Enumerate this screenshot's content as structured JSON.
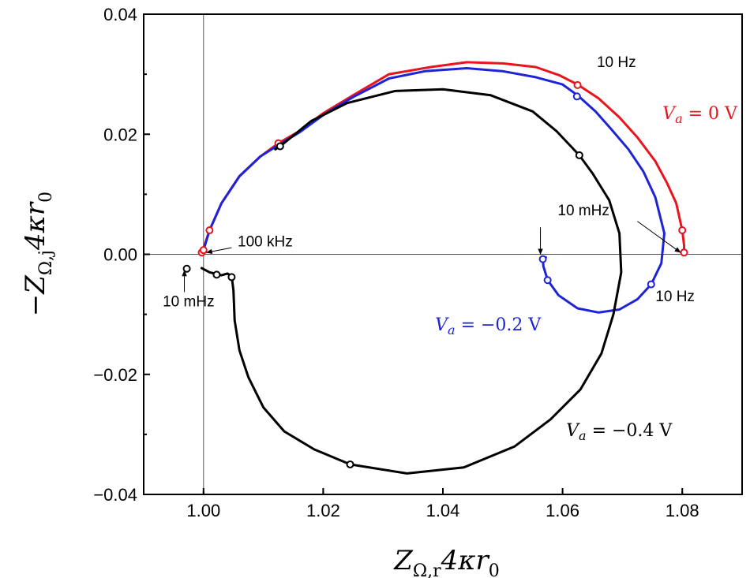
{
  "chart_data": {
    "type": "line",
    "xlim": [
      0.99,
      1.09
    ],
    "ylim": [
      -0.04,
      0.04
    ],
    "x_ticks": [
      "1.00",
      "1.02",
      "1.04",
      "1.06",
      "1.08"
    ],
    "y_ticks": [
      "-0.04",
      "-0.02",
      "0.00",
      "0.02",
      "0.04"
    ],
    "xlabel": "Z_{Ω,r} 4κr_0",
    "ylabel": "−Z_{Ω,j} 4κr_0",
    "xlabel_parts": {
      "main": "Z",
      "sub": "Ω,r",
      "tail": "4κr",
      "tail_sub": "0"
    },
    "ylabel_parts": {
      "pre": "−",
      "main": "Z",
      "sub": "Ω,j",
      "tail": "4κr",
      "tail_sub": "0"
    },
    "reference_lines": {
      "x": 1.0,
      "y": 0.0
    },
    "series": [
      {
        "name": "V_a = 0 V",
        "label": "Va = 0 V",
        "label_parts": {
          "v": "V",
          "sub": "a",
          "rest": " = 0 V"
        },
        "color": "#e8141e",
        "points": [
          [
            0.9997,
            0.0003
          ],
          [
            1.0,
            0.001
          ],
          [
            1.001,
            0.004
          ],
          [
            1.003,
            0.0085
          ],
          [
            1.006,
            0.013
          ],
          [
            1.0095,
            0.0163
          ],
          [
            1.0125,
            0.0185
          ],
          [
            1.016,
            0.0205
          ],
          [
            1.02,
            0.0235
          ],
          [
            1.025,
            0.0265
          ],
          [
            1.031,
            0.03
          ],
          [
            1.038,
            0.0312
          ],
          [
            1.044,
            0.032
          ],
          [
            1.05,
            0.0318
          ],
          [
            1.0555,
            0.0312
          ],
          [
            1.0595,
            0.0298
          ],
          [
            1.0625,
            0.0283
          ],
          [
            1.066,
            0.026
          ],
          [
            1.0695,
            0.0228
          ],
          [
            1.0725,
            0.0195
          ],
          [
            1.0755,
            0.0155
          ],
          [
            1.0775,
            0.0118
          ],
          [
            1.079,
            0.0085
          ],
          [
            1.08,
            0.004
          ],
          [
            1.0803,
            0.0015
          ],
          [
            1.0803,
            0.0003
          ]
        ],
        "markers": [
          [
            0.9997,
            0.0003
          ],
          [
            1.0,
            0.0007
          ],
          [
            1.001,
            0.004
          ],
          [
            1.0125,
            0.0185
          ],
          [
            1.0625,
            0.0282
          ],
          [
            1.08,
            0.004
          ],
          [
            1.0803,
            0.0003
          ]
        ]
      },
      {
        "name": "V_a = -0.2 V",
        "label": "Va = −0.2 V",
        "label_parts": {
          "v": "V",
          "sub": "a",
          "rest": " = −0.2 V"
        },
        "color": "#1d23d6",
        "points": [
          [
            1.0,
            0.0007
          ],
          [
            1.001,
            0.004
          ],
          [
            1.003,
            0.0085
          ],
          [
            1.006,
            0.013
          ],
          [
            1.0095,
            0.0163
          ],
          [
            1.0125,
            0.0182
          ],
          [
            1.016,
            0.0203
          ],
          [
            1.02,
            0.0232
          ],
          [
            1.025,
            0.0262
          ],
          [
            1.031,
            0.0293
          ],
          [
            1.037,
            0.0305
          ],
          [
            1.044,
            0.031
          ],
          [
            1.05,
            0.0305
          ],
          [
            1.0555,
            0.0295
          ],
          [
            1.06,
            0.0283
          ],
          [
            1.0625,
            0.0265
          ],
          [
            1.0655,
            0.0238
          ],
          [
            1.068,
            0.021
          ],
          [
            1.071,
            0.0175
          ],
          [
            1.0735,
            0.0138
          ],
          [
            1.0755,
            0.0095
          ],
          [
            1.077,
            0.0035
          ],
          [
            1.0765,
            -0.0015
          ],
          [
            1.0748,
            -0.005
          ],
          [
            1.0725,
            -0.0075
          ],
          [
            1.0695,
            -0.0092
          ],
          [
            1.066,
            -0.0097
          ],
          [
            1.0625,
            -0.009
          ],
          [
            1.0593,
            -0.0068
          ],
          [
            1.0575,
            -0.0043
          ],
          [
            1.0568,
            -0.002
          ],
          [
            1.0567,
            -0.0007
          ],
          [
            1.0572,
            -0.0005
          ]
        ],
        "markers": [
          [
            1.0624,
            0.0263
          ],
          [
            1.0748,
            -0.005
          ],
          [
            1.0575,
            -0.0043
          ],
          [
            1.0567,
            -0.0008
          ]
        ]
      },
      {
        "name": "V_a = -0.4 V",
        "label": "Va = −0.4 V",
        "label_parts": {
          "v": "V",
          "sub": "a",
          "rest": " = −0.4 V"
        },
        "color": "#000000",
        "points": [
          [
            0.9997,
            -0.0023
          ],
          [
            1.001,
            -0.003
          ],
          [
            1.0022,
            -0.0033
          ],
          [
            1.003,
            -0.0035
          ],
          [
            1.004,
            -0.0032
          ],
          [
            1.0047,
            -0.0036
          ],
          [
            1.005,
            -0.006
          ],
          [
            1.0052,
            -0.011
          ],
          [
            1.006,
            -0.016
          ],
          [
            1.0075,
            -0.0205
          ],
          [
            1.01,
            -0.0255
          ],
          [
            1.0135,
            -0.0295
          ],
          [
            1.0185,
            -0.0325
          ],
          [
            1.0245,
            -0.035
          ],
          [
            1.034,
            -0.0365
          ],
          [
            1.0435,
            -0.0355
          ],
          [
            1.052,
            -0.032
          ],
          [
            1.058,
            -0.0275
          ],
          [
            1.063,
            -0.0225
          ],
          [
            1.0665,
            -0.0165
          ],
          [
            1.0685,
            -0.01
          ],
          [
            1.0698,
            -0.003
          ],
          [
            1.0695,
            0.0035
          ],
          [
            1.0678,
            0.009
          ],
          [
            1.065,
            0.0135
          ],
          [
            1.0628,
            0.0165
          ],
          [
            1.059,
            0.0205
          ],
          [
            1.055,
            0.0238
          ],
          [
            1.048,
            0.0265
          ],
          [
            1.04,
            0.0275
          ],
          [
            1.032,
            0.0272
          ],
          [
            1.024,
            0.0252
          ],
          [
            1.018,
            0.0222
          ],
          [
            1.0128,
            0.018
          ],
          [
            1.012,
            0.0175
          ]
        ],
        "markers": [
          [
            0.9972,
            -0.0024
          ],
          [
            1.0022,
            -0.0034
          ],
          [
            1.0047,
            -0.0038
          ],
          [
            1.0245,
            -0.035
          ],
          [
            1.0628,
            0.0165
          ],
          [
            1.0128,
            0.018
          ]
        ]
      }
    ],
    "annotations": [
      {
        "text": "10 Hz",
        "at": [
          1.069,
          0.0312
        ],
        "anchor": "middle"
      },
      {
        "text": "10 Hz",
        "at": [
          1.0788,
          -0.0078
        ],
        "anchor": "middle"
      },
      {
        "text": "10 mHz",
        "at": [
          1.0635,
          0.0065
        ],
        "anchor": "middle"
      },
      {
        "text": "100 kHz",
        "at": [
          1.0057,
          0.0013
        ],
        "anchor": "start"
      },
      {
        "text": "10 mHz",
        "at": [
          0.9975,
          -0.0087
        ],
        "anchor": "middle"
      }
    ],
    "series_labels": [
      {
        "series": 0,
        "at": [
          1.0767,
          0.0225
        ],
        "anchor": "start"
      },
      {
        "series": 1,
        "at": [
          1.0387,
          -0.0127
        ],
        "anchor": "start"
      },
      {
        "series": 2,
        "at": [
          1.0606,
          -0.0303
        ],
        "anchor": "start"
      }
    ],
    "arrows": [
      {
        "from": [
          1.0725,
          0.0055
        ],
        "to": [
          1.0797,
          0.0003
        ]
      },
      {
        "from": [
          1.0563,
          0.0045
        ],
        "to": [
          1.0563,
          0.0
        ]
      },
      {
        "from": [
          1.0047,
          0.0011
        ],
        "to": [
          1.0005,
          0.0003
        ]
      },
      {
        "from": [
          0.9968,
          -0.0063
        ],
        "to": [
          0.9968,
          -0.0027
        ]
      }
    ]
  }
}
